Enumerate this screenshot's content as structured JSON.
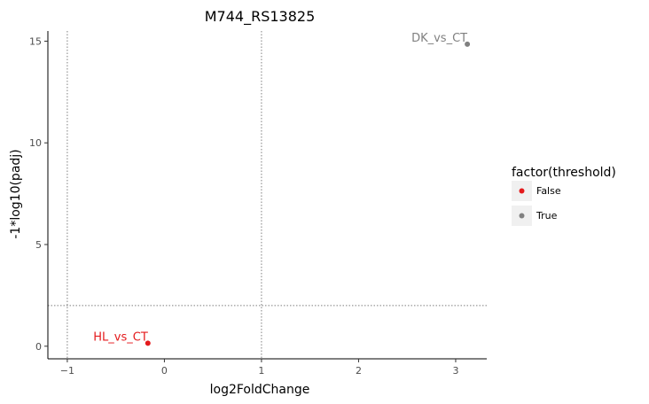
{
  "chart_data": {
    "type": "scatter",
    "title": "M744_RS13825",
    "xlabel": "log2FoldChange",
    "ylabel": "-1*log10(padj)",
    "xlim": [
      -1.2,
      3.32
    ],
    "ylim": [
      -0.62,
      15.5
    ],
    "x_ticks": [
      {
        "value": -1,
        "label": "−1"
      },
      {
        "value": 0,
        "label": "0"
      },
      {
        "value": 1,
        "label": "1"
      },
      {
        "value": 2,
        "label": "2"
      },
      {
        "value": 3,
        "label": "3"
      }
    ],
    "y_ticks": [
      {
        "value": 0,
        "label": "0"
      },
      {
        "value": 5,
        "label": "5"
      },
      {
        "value": 10,
        "label": "10"
      },
      {
        "value": 15,
        "label": "15"
      }
    ],
    "reference_lines": {
      "vertical": [
        -1,
        1
      ],
      "horizontal": [
        2
      ]
    },
    "grid": false,
    "legend": {
      "title": "factor(threshold)",
      "position": "right",
      "entries": [
        {
          "label": "False",
          "color": "#e41a1c"
        },
        {
          "label": "True",
          "color": "#808080"
        }
      ]
    },
    "points": [
      {
        "x": -0.17,
        "y": 0.15,
        "label": "HL_vs_CT",
        "group": "False",
        "color": "#e41a1c"
      },
      {
        "x": 3.12,
        "y": 14.85,
        "label": "DK_vs_CT",
        "group": "True",
        "color": "#808080"
      }
    ]
  }
}
